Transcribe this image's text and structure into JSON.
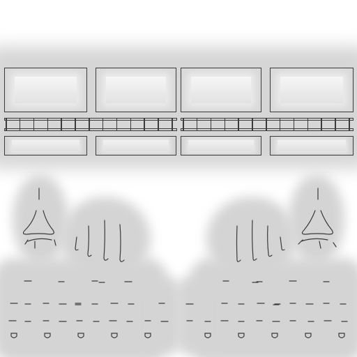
{
  "texture": {
    "ink_color": "#3a3a3a",
    "glow_color": "#d4d4d4",
    "background_color": "#ffffff",
    "top_panels_count": 4,
    "rail_posts_per_section": 12,
    "bottom_strips_count": 4,
    "left_finger_sketches": 4,
    "right_finger_sketches": 4,
    "tick_rows": 4,
    "drop_marks_per_side": 5
  }
}
